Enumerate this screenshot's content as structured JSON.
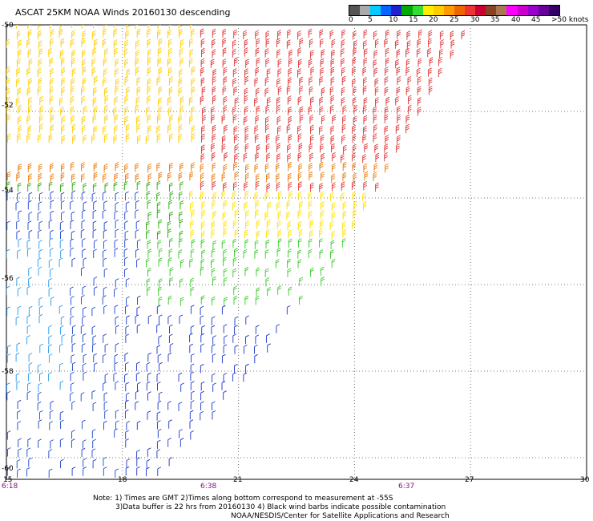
{
  "title": "ASCAT 25KM NOAA Winds 20160130 descending",
  "legend": {
    "labels": [
      "0",
      "5",
      "10",
      "15",
      "20",
      "25",
      "30",
      "35",
      "40",
      "45",
      ">50 knots"
    ],
    "colors": [
      "#555555",
      "#aaaaaa",
      "#00ccff",
      "#0066ff",
      "#2222cc",
      "#00aa00",
      "#33dd33",
      "#ffee00",
      "#ffcc00",
      "#ff9900",
      "#ee6600",
      "#ee3333",
      "#cc0033",
      "#884422",
      "#aa7755",
      "#ff00ff",
      "#cc00cc",
      "#9900cc",
      "#660099",
      "#330066"
    ]
  },
  "axes": {
    "lat_labels": [
      "-50",
      "-52",
      "-54",
      "-56",
      "-58",
      "-60"
    ],
    "lon_labels": [
      "15",
      "18",
      "21",
      "24",
      "27",
      "30"
    ]
  },
  "times": [
    "6:18",
    "6:38",
    "6:37"
  ],
  "notes": {
    "line1": "Note: 1) Times are GMT 2)Times along bottom correspond to measurement at -55S",
    "line2": "3)Data buffer is 22 hrs from 20160130 4) Black wind barbs indicate possible contamination",
    "line3": "NOAA/NESDIS/Center for Satellite Applications and Research"
  },
  "map": {
    "lat_range": [
      -60.5,
      -50
    ],
    "lon_range": [
      15,
      30
    ],
    "grid": "dotted",
    "swath_corners_deg": [
      [
        -50,
        15
      ],
      [
        -50,
        27
      ],
      [
        -54.3,
        24.3
      ],
      [
        -57,
        22.5
      ],
      [
        -60.5,
        19
      ]
    ],
    "zones": [
      {
        "name": "north-strong",
        "lat_min": -52.8,
        "lat_max": -50,
        "lon_min": 15,
        "lon_max": 20,
        "color": "#ffcc00"
      },
      {
        "name": "north-strongest",
        "lat_min": -53.9,
        "lat_max": -50.3,
        "lon_min": 20,
        "lon_max": 27,
        "color": "#e23333"
      },
      {
        "name": "mid-orange",
        "lat_min": -53.8,
        "lat_max": -53.2,
        "lon_min": 15,
        "lon_max": 27,
        "color": "#ee7700"
      },
      {
        "name": "mid-yellow",
        "lat_min": -55.2,
        "lat_max": -54.0,
        "lon_min": 19.5,
        "lon_max": 25,
        "color": "#ffe000"
      },
      {
        "name": "mid-green",
        "lat_min": -55.2,
        "lat_max": -53.8,
        "lon_min": 15,
        "lon_max": 19.5,
        "color": "#22aa00"
      },
      {
        "name": "green-band",
        "lat_min": -56.8,
        "lat_max": -55.0,
        "lon_min": 18,
        "lon_max": 24,
        "color": "#33cc22"
      },
      {
        "name": "blue-west",
        "lat_min": -60.5,
        "lat_max": -54.0,
        "lon_min": 15,
        "lon_max": 18.5,
        "color": "#1a44cc"
      },
      {
        "name": "blue-south",
        "lat_min": -60.5,
        "lat_max": -56.5,
        "lon_min": 18,
        "lon_max": 23,
        "color": "#1a33cc"
      },
      {
        "name": "light-blue-west",
        "lat_min": -58.5,
        "lat_max": -55.0,
        "lon_min": 15,
        "lon_max": 16.5,
        "color": "#2299ee"
      }
    ]
  }
}
